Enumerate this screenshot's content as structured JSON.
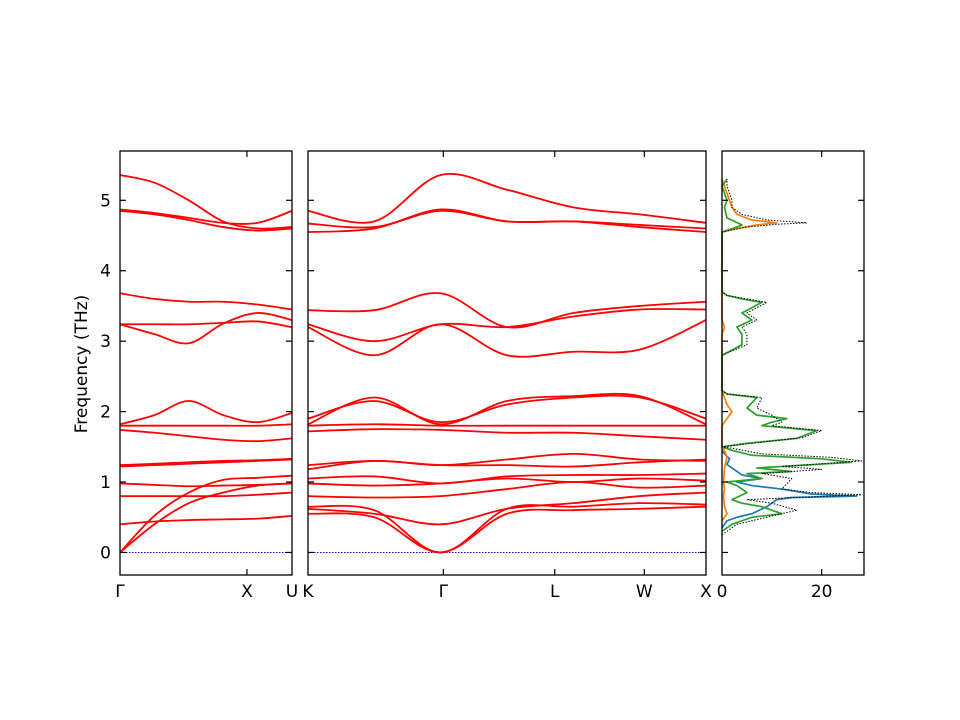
{
  "chart_data": {
    "type": "line",
    "ylabel": "Frequency (THz)",
    "ylim": [
      -0.32,
      5.7
    ],
    "yticks": [
      0,
      1,
      2,
      3,
      4,
      5
    ],
    "ytick_labels": [
      "0",
      "1",
      "2",
      "3",
      "4",
      "5"
    ],
    "band_color": "#ff0000",
    "zero_line_color": "#0000cc",
    "panels": [
      {
        "segment": "G-X-U",
        "xlim": [
          0,
          1
        ],
        "xticks": [
          {
            "pos": 0,
            "label": "Γ"
          },
          {
            "pos": 0.738,
            "label": "X"
          },
          {
            "pos": 1,
            "label": "U"
          }
        ],
        "bands": [
          [
            0,
            0.52,
            0.85,
            1.03,
            1.06,
            1.09
          ],
          [
            0,
            0.4,
            0.7,
            0.85,
            0.95,
            0.98
          ],
          [
            0.4,
            0.44,
            0.46,
            0.47,
            0.48,
            0.52
          ],
          [
            0.8,
            0.8,
            0.8,
            0.8,
            0.82,
            0.85
          ],
          [
            0.98,
            0.96,
            0.94,
            0.95,
            0.96,
            0.98
          ],
          [
            1.22,
            1.24,
            1.26,
            1.28,
            1.3,
            1.32
          ],
          [
            1.24,
            1.26,
            1.28,
            1.3,
            1.31,
            1.33
          ],
          [
            1.74,
            1.7,
            1.65,
            1.6,
            1.58,
            1.62
          ],
          [
            1.8,
            1.8,
            1.8,
            1.8,
            1.8,
            1.82
          ],
          [
            1.82,
            1.95,
            2.15,
            1.95,
            1.85,
            1.98
          ],
          [
            3.24,
            3.1,
            2.97,
            3.25,
            3.4,
            3.3
          ],
          [
            3.24,
            3.24,
            3.24,
            3.26,
            3.28,
            3.2
          ],
          [
            3.68,
            3.6,
            3.56,
            3.56,
            3.52,
            3.45
          ],
          [
            4.85,
            4.8,
            4.72,
            4.62,
            4.57,
            4.6
          ],
          [
            4.87,
            4.82,
            4.75,
            4.68,
            4.68,
            4.85
          ],
          [
            5.36,
            5.25,
            5.0,
            4.7,
            4.6,
            4.62
          ]
        ]
      },
      {
        "segment": "K-G-L-W-X",
        "xlim": [
          0,
          1
        ],
        "xticks": [
          {
            "pos": 0,
            "label": "K"
          },
          {
            "pos": 0.34,
            "label": "Γ"
          },
          {
            "pos": 0.62,
            "label": "L"
          },
          {
            "pos": 0.845,
            "label": "W"
          },
          {
            "pos": 1,
            "label": "X"
          }
        ],
        "bands": [
          [
            0.55,
            0.5,
            0.0,
            0.55,
            0.6,
            0.62,
            0.65
          ],
          [
            0.65,
            0.6,
            0.0,
            0.62,
            0.65,
            0.7,
            0.68
          ],
          [
            0.62,
            0.55,
            0.4,
            0.62,
            0.7,
            0.8,
            0.85
          ],
          [
            0.8,
            0.78,
            0.8,
            0.9,
            1.0,
            0.92,
            0.95
          ],
          [
            0.98,
            0.95,
            0.98,
            1.05,
            1.0,
            1.05,
            1.02
          ],
          [
            1.05,
            1.08,
            0.98,
            1.08,
            1.1,
            1.1,
            1.12
          ],
          [
            1.18,
            1.3,
            1.24,
            1.32,
            1.4,
            1.32,
            1.3
          ],
          [
            1.24,
            1.3,
            1.24,
            1.24,
            1.22,
            1.28,
            1.32
          ],
          [
            1.72,
            1.75,
            1.74,
            1.7,
            1.7,
            1.65,
            1.6
          ],
          [
            1.8,
            1.82,
            1.8,
            1.8,
            1.8,
            1.8,
            1.8
          ],
          [
            1.82,
            2.2,
            1.82,
            2.15,
            2.22,
            2.22,
            1.82
          ],
          [
            1.9,
            2.15,
            1.85,
            2.1,
            2.2,
            2.2,
            1.9
          ],
          [
            3.2,
            2.8,
            3.24,
            2.8,
            2.85,
            2.88,
            3.3
          ],
          [
            3.24,
            3.0,
            3.24,
            3.2,
            3.35,
            3.45,
            3.45
          ],
          [
            3.44,
            3.44,
            3.68,
            3.2,
            3.4,
            3.5,
            3.56
          ],
          [
            4.55,
            4.6,
            4.87,
            4.7,
            4.7,
            4.62,
            4.55
          ],
          [
            4.67,
            4.62,
            4.85,
            4.7,
            4.7,
            4.65,
            4.6
          ],
          [
            4.85,
            4.7,
            5.36,
            5.15,
            4.9,
            4.8,
            4.68
          ]
        ]
      }
    ],
    "dos": {
      "xlim": [
        0,
        28.5
      ],
      "xticks": [
        0,
        20
      ],
      "xtick_labels": [
        "0",
        "20"
      ],
      "series": [
        {
          "color": "#1f77b4",
          "style": "solid",
          "points": [
            [
              0,
              0.35
            ],
            [
              1,
              0.45
            ],
            [
              3,
              0.5
            ],
            [
              6,
              0.55
            ],
            [
              9,
              0.65
            ],
            [
              11,
              0.75
            ],
            [
              14,
              0.78
            ],
            [
              27,
              0.8
            ],
            [
              18,
              0.83
            ],
            [
              12,
              0.9
            ],
            [
              6,
              0.95
            ],
            [
              3,
              1.0
            ],
            [
              8,
              1.05
            ],
            [
              4,
              1.1
            ],
            [
              2,
              1.2
            ],
            [
              1,
              1.25
            ],
            [
              1.5,
              1.33
            ],
            [
              0.5,
              1.4
            ],
            [
              0,
              1.45
            ]
          ]
        },
        {
          "color": "#ff7f0e",
          "style": "solid",
          "points": [
            [
              0,
              0.45
            ],
            [
              1,
              0.55
            ],
            [
              0.5,
              0.65
            ],
            [
              0.3,
              0.8
            ],
            [
              0.5,
              0.9
            ],
            [
              0.3,
              1.0
            ],
            [
              0.5,
              1.2
            ],
            [
              1,
              1.35
            ],
            [
              0.5,
              1.45
            ],
            [
              0,
              1.5
            ],
            [
              0,
              1.8
            ],
            [
              1,
              1.9
            ],
            [
              2,
              2.0
            ],
            [
              1,
              2.1
            ],
            [
              0.5,
              2.2
            ],
            [
              0,
              2.3
            ],
            [
              0,
              3.1
            ],
            [
              0.5,
              3.2
            ],
            [
              0,
              3.3
            ],
            [
              0,
              4.55
            ],
            [
              3,
              4.6
            ],
            [
              7,
              4.65
            ],
            [
              11,
              4.68
            ],
            [
              6,
              4.72
            ],
            [
              3,
              4.8
            ],
            [
              2,
              4.9
            ],
            [
              1,
              5.1
            ],
            [
              0,
              5.3
            ]
          ]
        },
        {
          "color": "#2ca02c",
          "style": "solid",
          "points": [
            [
              0,
              0.3
            ],
            [
              2,
              0.4
            ],
            [
              6,
              0.5
            ],
            [
              12,
              0.55
            ],
            [
              8,
              0.65
            ],
            [
              4,
              0.7
            ],
            [
              2,
              0.75
            ],
            [
              5,
              0.85
            ],
            [
              3,
              0.95
            ],
            [
              1,
              1.0
            ],
            [
              8,
              1.05
            ],
            [
              5,
              1.12
            ],
            [
              14,
              1.15
            ],
            [
              7,
              1.2
            ],
            [
              26,
              1.28
            ],
            [
              20,
              1.33
            ],
            [
              6,
              1.38
            ],
            [
              2,
              1.45
            ],
            [
              0,
              1.5
            ],
            [
              5,
              1.55
            ],
            [
              15,
              1.62
            ],
            [
              19,
              1.73
            ],
            [
              8,
              1.8
            ],
            [
              10,
              1.85
            ],
            [
              13,
              1.9
            ],
            [
              7,
              1.95
            ],
            [
              5,
              2.05
            ],
            [
              7,
              2.2
            ],
            [
              1,
              2.25
            ],
            [
              0,
              2.3
            ],
            [
              0,
              2.8
            ],
            [
              4,
              2.95
            ],
            [
              4,
              3.1
            ],
            [
              3,
              3.2
            ],
            [
              6,
              3.3
            ],
            [
              4,
              3.4
            ],
            [
              8,
              3.55
            ],
            [
              4,
              3.6
            ],
            [
              1,
              3.65
            ],
            [
              0,
              3.7
            ],
            [
              0,
              4.55
            ],
            [
              3,
              4.62
            ],
            [
              4,
              4.65
            ],
            [
              1,
              4.75
            ],
            [
              0.5,
              4.9
            ],
            [
              1,
              5.0
            ],
            [
              0,
              5.2
            ],
            [
              1,
              5.3
            ]
          ]
        },
        {
          "color": "#000000",
          "style": "dotted",
          "points": [
            [
              0,
              0.25
            ],
            [
              3,
              0.4
            ],
            [
              9,
              0.5
            ],
            [
              15,
              0.6
            ],
            [
              10,
              0.7
            ],
            [
              5,
              0.75
            ],
            [
              28,
              0.82
            ],
            [
              18,
              0.85
            ],
            [
              12,
              0.9
            ],
            [
              14,
              1.05
            ],
            [
              8,
              1.12
            ],
            [
              20,
              1.18
            ],
            [
              12,
              1.22
            ],
            [
              28,
              1.3
            ],
            [
              22,
              1.35
            ],
            [
              8,
              1.4
            ],
            [
              2,
              1.48
            ],
            [
              0,
              1.5
            ],
            [
              6,
              1.55
            ],
            [
              16,
              1.63
            ],
            [
              20,
              1.73
            ],
            [
              10,
              1.8
            ],
            [
              12,
              1.85
            ],
            [
              10,
              1.95
            ],
            [
              7,
              2.05
            ],
            [
              8,
              2.2
            ],
            [
              1,
              2.25
            ],
            [
              0,
              2.3
            ],
            [
              0,
              2.8
            ],
            [
              5,
              2.95
            ],
            [
              5,
              3.1
            ],
            [
              4,
              3.2
            ],
            [
              7,
              3.3
            ],
            [
              5,
              3.4
            ],
            [
              9,
              3.55
            ],
            [
              5,
              3.6
            ],
            [
              1,
              3.65
            ],
            [
              0,
              3.7
            ],
            [
              0,
              4.55
            ],
            [
              5,
              4.62
            ],
            [
              11,
              4.66
            ],
            [
              17,
              4.68
            ],
            [
              9,
              4.72
            ],
            [
              4,
              4.8
            ],
            [
              2,
              4.9
            ],
            [
              2,
              5.0
            ],
            [
              1,
              5.2
            ],
            [
              1,
              5.3
            ]
          ]
        }
      ]
    }
  }
}
